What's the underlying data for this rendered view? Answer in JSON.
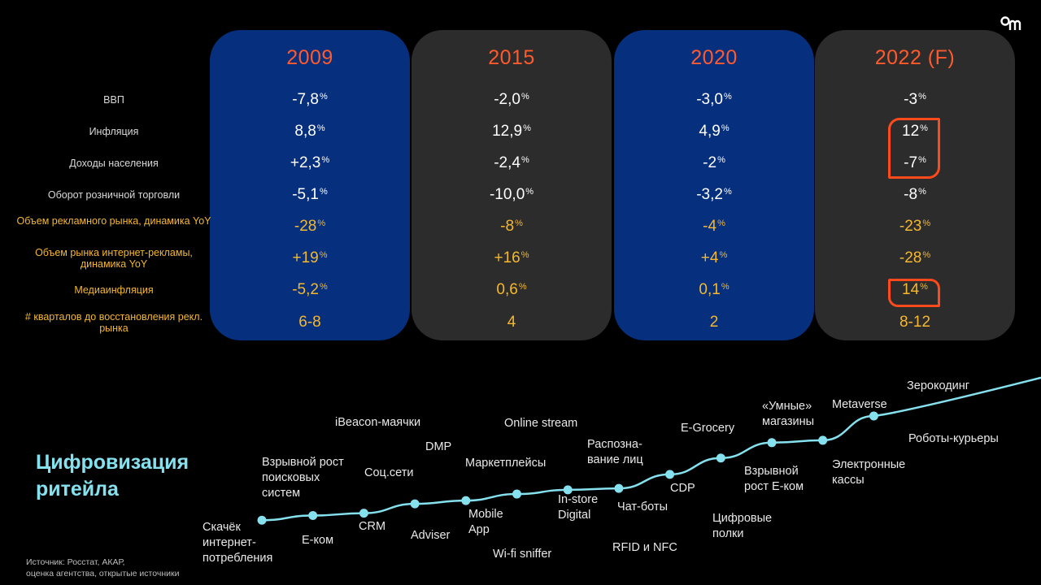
{
  "colors": {
    "blue_panel": "#062f7e",
    "gray_panel": "#2c2c2c",
    "year_color": "#ff5a2e",
    "yellow": "#f5b82e",
    "highlight": "#ff4a1c",
    "timeline": "#86e1ef"
  },
  "chart_data": [
    {
      "type": "table",
      "columns": [
        "2009",
        "2015",
        "2020",
        "2022 (F)"
      ],
      "rows": [
        {
          "label": "ВВП",
          "color": "white",
          "values": [
            [
              "-7,8",
              "%"
            ],
            [
              "-2,0",
              "%"
            ],
            [
              "-3,0",
              "%"
            ],
            [
              "-3",
              "%"
            ]
          ]
        },
        {
          "label": "Инфляция",
          "color": "white",
          "values": [
            [
              "8,8",
              "%"
            ],
            [
              "12,9",
              "%"
            ],
            [
              "4,9",
              "%"
            ],
            [
              "12",
              "%"
            ]
          ]
        },
        {
          "label": "Доходы населения",
          "color": "white",
          "values": [
            [
              "+2,3",
              "%"
            ],
            [
              "-2,4",
              "%"
            ],
            [
              "-2",
              "%"
            ],
            [
              "-7",
              "%"
            ]
          ]
        },
        {
          "label": "Оборот розничной торговли",
          "color": "white",
          "values": [
            [
              "-5,1",
              "%"
            ],
            [
              "-10,0",
              "%"
            ],
            [
              "-3,2",
              "%"
            ],
            [
              "-8",
              "%"
            ]
          ]
        },
        {
          "label": "Объем рекламного рынка, динамика YoY",
          "color": "yellow",
          "values": [
            [
              "-28",
              "%"
            ],
            [
              "-8",
              "%"
            ],
            [
              "-4",
              "%"
            ],
            [
              "-23",
              "%"
            ]
          ]
        },
        {
          "label": "Объем рынка интернет-рекламы, динамика YoY",
          "color": "yellow",
          "values": [
            [
              "+19",
              "%"
            ],
            [
              "+16",
              "%"
            ],
            [
              "+4",
              "%"
            ],
            [
              "-28",
              "%"
            ]
          ]
        },
        {
          "label": "Медиаинфляция",
          "color": "yellow",
          "values": [
            [
              "-5,2",
              "%"
            ],
            [
              "0,6",
              "%"
            ],
            [
              "0,1",
              "%"
            ],
            [
              "14",
              "%"
            ]
          ]
        },
        {
          "label": "# кварталов до восстановления рекл. рынка",
          "color": "yellow",
          "values": [
            [
              "6-8",
              ""
            ],
            [
              "4",
              ""
            ],
            [
              "2",
              ""
            ],
            [
              "8-12",
              ""
            ]
          ]
        }
      ],
      "highlighted": [
        "Инфляция / Доходы населения — 2022 (F)",
        "Медиаинфляция — 2022 (F)"
      ]
    },
    {
      "type": "line",
      "title": "Цифровизация ритейла",
      "x": [
        1,
        2,
        3,
        4,
        5,
        6,
        7,
        8,
        9,
        10,
        11,
        12,
        13
      ],
      "values": [
        1.0,
        2.0,
        2.5,
        4.5,
        5.2,
        6.6,
        7.5,
        7.8,
        10.8,
        14.3,
        17.6,
        18.1,
        23.3
      ],
      "ylim": [
        0,
        35
      ],
      "upper_labels": [
        "Взрывной рост поисковых систем",
        "Соц.сети",
        "iBeacon-маячки",
        "DMP",
        "Маркетплейсы",
        "Online stream",
        "Распозна-вание лиц",
        "E-Grocery",
        "«Умные» магазины",
        "Metaverse",
        "Зерокодинг",
        "Роботы-курьеры"
      ],
      "lower_labels": [
        "Скачёк интернет-потребления",
        "E-ком",
        "CRM",
        "Adviser",
        "Mobile App",
        "Wi-fi sniffer",
        "In-store Digital",
        "Чат-боты",
        "RFID и NFC",
        "CDP",
        "Цифровые полки",
        "Взрывной рост  E-ком",
        "Электронные кассы"
      ]
    }
  ],
  "source_note": [
    "Источник: Росстат, АКАР,",
    "оценка агентства, открытые источники"
  ],
  "logo_label": "ОМ"
}
